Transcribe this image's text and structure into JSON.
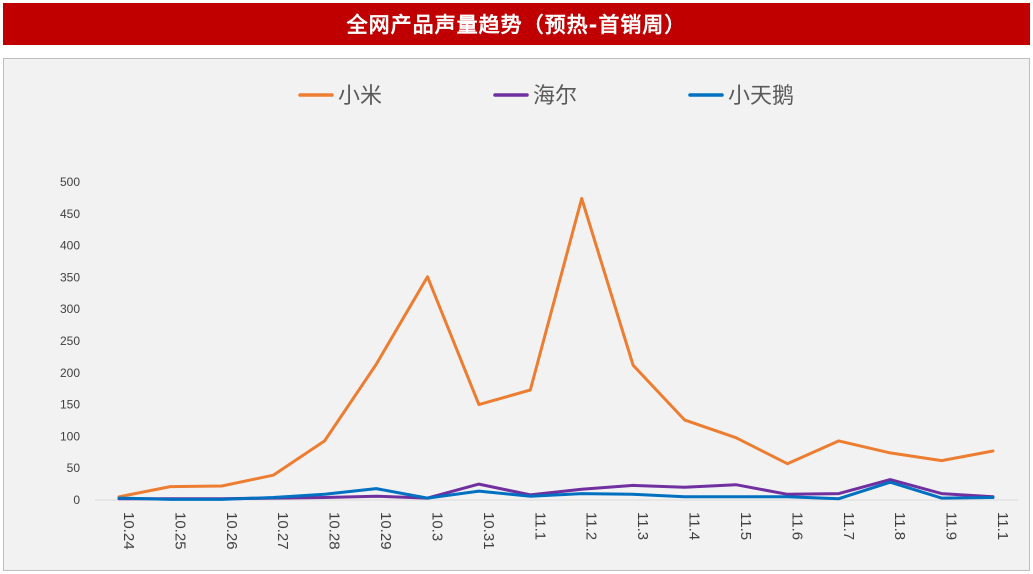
{
  "chart_data": {
    "type": "line",
    "title": "全网产品声量趋势（预热-首销周）",
    "xlabel": "",
    "ylabel": "",
    "ylim": [
      0,
      500
    ],
    "yticks": [
      0,
      50,
      100,
      150,
      200,
      250,
      300,
      350,
      400,
      450,
      500
    ],
    "categories": [
      "10.24",
      "10.25",
      "10.26",
      "10.27",
      "10.28",
      "10.29",
      "10.3",
      "10.31",
      "11.1",
      "11.2",
      "11.3",
      "11.4",
      "11.5",
      "11.6",
      "11.7",
      "11.8",
      "11.9",
      "11.1"
    ],
    "legend_position": "top",
    "grid": false,
    "series": [
      {
        "name": "小米",
        "color": "#ed7d31",
        "values": [
          5,
          21,
          22,
          39,
          93,
          213,
          351,
          150,
          173,
          474,
          212,
          126,
          98,
          57,
          93,
          74,
          62,
          77
        ]
      },
      {
        "name": "海尔",
        "color": "#7030a0",
        "values": [
          2,
          2,
          2,
          3,
          4,
          6,
          3,
          25,
          8,
          17,
          23,
          20,
          24,
          9,
          10,
          32,
          10,
          5
        ]
      },
      {
        "name": "小天鹅",
        "color": "#0070c0",
        "values": [
          3,
          1,
          1,
          4,
          9,
          18,
          3,
          14,
          6,
          10,
          9,
          5,
          5,
          5,
          2,
          28,
          3,
          4
        ]
      }
    ]
  }
}
